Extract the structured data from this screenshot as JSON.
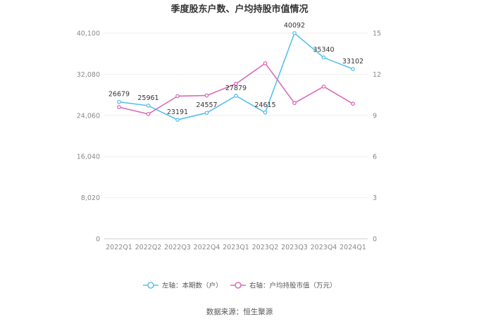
{
  "chart_data": {
    "type": "line",
    "title": "季度股东户数、户均持股市值情况",
    "categories": [
      "2022Q1",
      "2022Q2",
      "2022Q3",
      "2022Q4",
      "2023Q1",
      "2023Q2",
      "2023Q3",
      "2023Q4",
      "2024Q1"
    ],
    "left_axis": {
      "ylim": [
        0,
        40100
      ],
      "ticks": [
        "0",
        "8,020",
        "16,040",
        "24,060",
        "32,080",
        "40,100"
      ],
      "tick_values": [
        0,
        8020,
        16040,
        24060,
        32080,
        40100
      ]
    },
    "right_axis": {
      "ylim": [
        0,
        15
      ],
      "ticks": [
        "0",
        "3",
        "6",
        "9",
        "12",
        "15"
      ],
      "tick_values": [
        0,
        3,
        6,
        9,
        12,
        15
      ]
    },
    "series": [
      {
        "name": "左轴：本期数（户）",
        "axis": "left",
        "color": "#5bc0eb",
        "values": [
          26679,
          25961,
          23191,
          24557,
          27879,
          24615,
          40092,
          35340,
          33102
        ],
        "labels": [
          "26679",
          "25961",
          "23191",
          "24557",
          "27879",
          "24615",
          "40092",
          "35340",
          "33102"
        ]
      },
      {
        "name": "右轴：户均持股市值（万元）",
        "axis": "right",
        "color": "#d96bb8",
        "values": [
          9.6,
          9.1,
          10.4,
          10.45,
          11.3,
          12.8,
          9.9,
          11.1,
          9.85
        ]
      }
    ],
    "legend_position": "bottom-center",
    "grid": true
  },
  "source_text": "数据来源：恒生聚源"
}
